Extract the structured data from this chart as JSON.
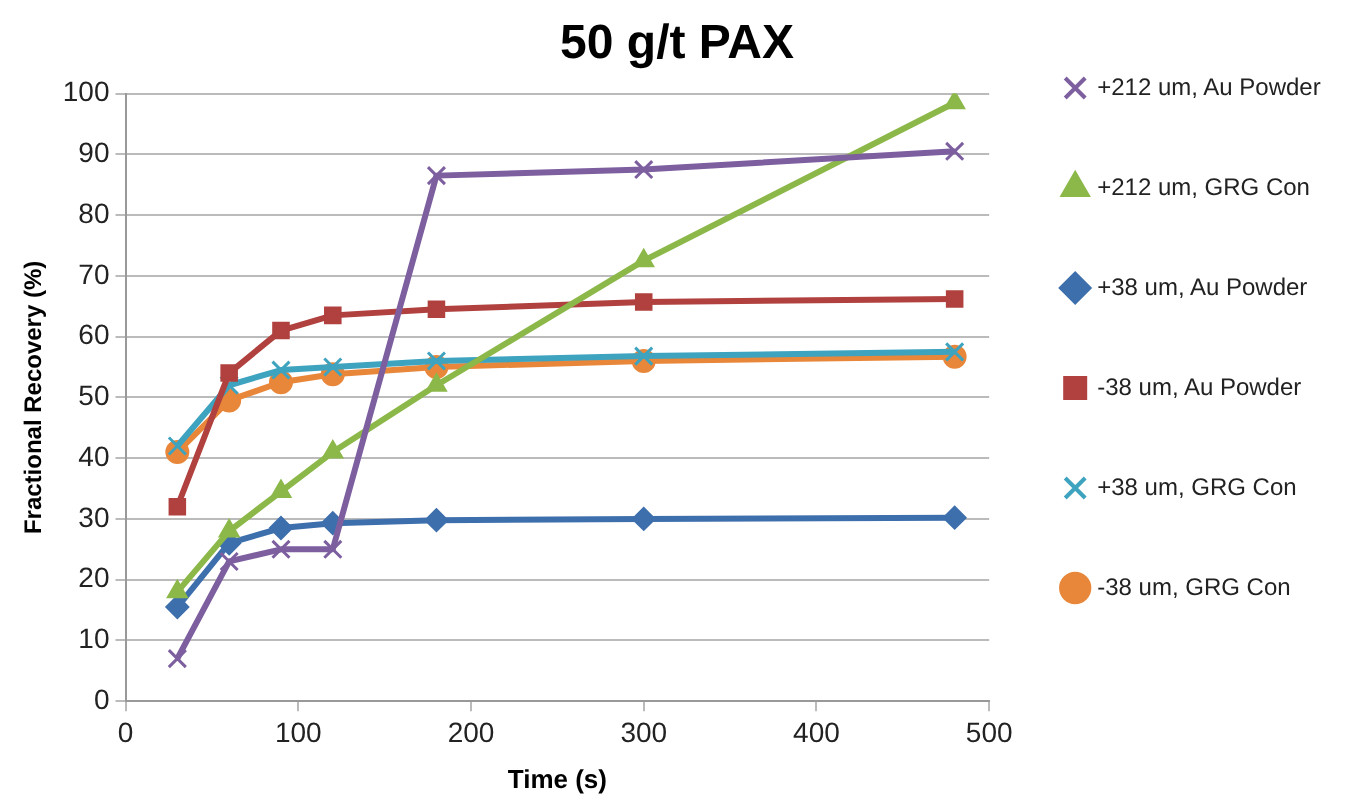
{
  "chart_data": {
    "type": "line",
    "title": "50 g/t PAX",
    "xlabel": "Time (s)",
    "ylabel": "Fractional Recovery (%)",
    "x": [
      30,
      60,
      90,
      120,
      180,
      300,
      480
    ],
    "xlim": [
      0,
      500
    ],
    "xticks": [
      0,
      100,
      200,
      300,
      400,
      500
    ],
    "ylim": [
      0,
      100
    ],
    "yticks": [
      0,
      10,
      20,
      30,
      40,
      50,
      60,
      70,
      80,
      90,
      100
    ],
    "grid": "y",
    "legend": "right",
    "line_style": "solid",
    "series": [
      {
        "name": "+212 um, Au Powder",
        "color": "#7d5fa0",
        "marker": "cross",
        "values": [
          7,
          23,
          25,
          25,
          86.5,
          87.5,
          90.5
        ]
      },
      {
        "name": "+212 um, GRG Con",
        "color": "#8cb84a",
        "marker": "triangle",
        "values": [
          18,
          28,
          34.5,
          41,
          52,
          72.5,
          98.5
        ]
      },
      {
        "name": "+38 um, Au Powder",
        "color": "#3e6fad",
        "marker": "diamond",
        "values": [
          15.5,
          26,
          28.5,
          29.3,
          29.8,
          30,
          30.2
        ]
      },
      {
        "name": "-38 um, Au Powder",
        "color": "#b0413e",
        "marker": "square",
        "values": [
          32,
          54,
          61,
          63.5,
          64.5,
          65.7,
          66.2
        ]
      },
      {
        "name": "+38 um, GRG Con",
        "color": "#3ea3bf",
        "marker": "cross",
        "values": [
          42,
          52,
          54.5,
          55,
          56,
          56.8,
          57.5
        ]
      },
      {
        "name": "-38 um, GRG Con",
        "color": "#e8873a",
        "marker": "circle",
        "values": [
          41,
          49.5,
          52.5,
          53.8,
          55,
          56,
          56.7
        ]
      }
    ]
  }
}
